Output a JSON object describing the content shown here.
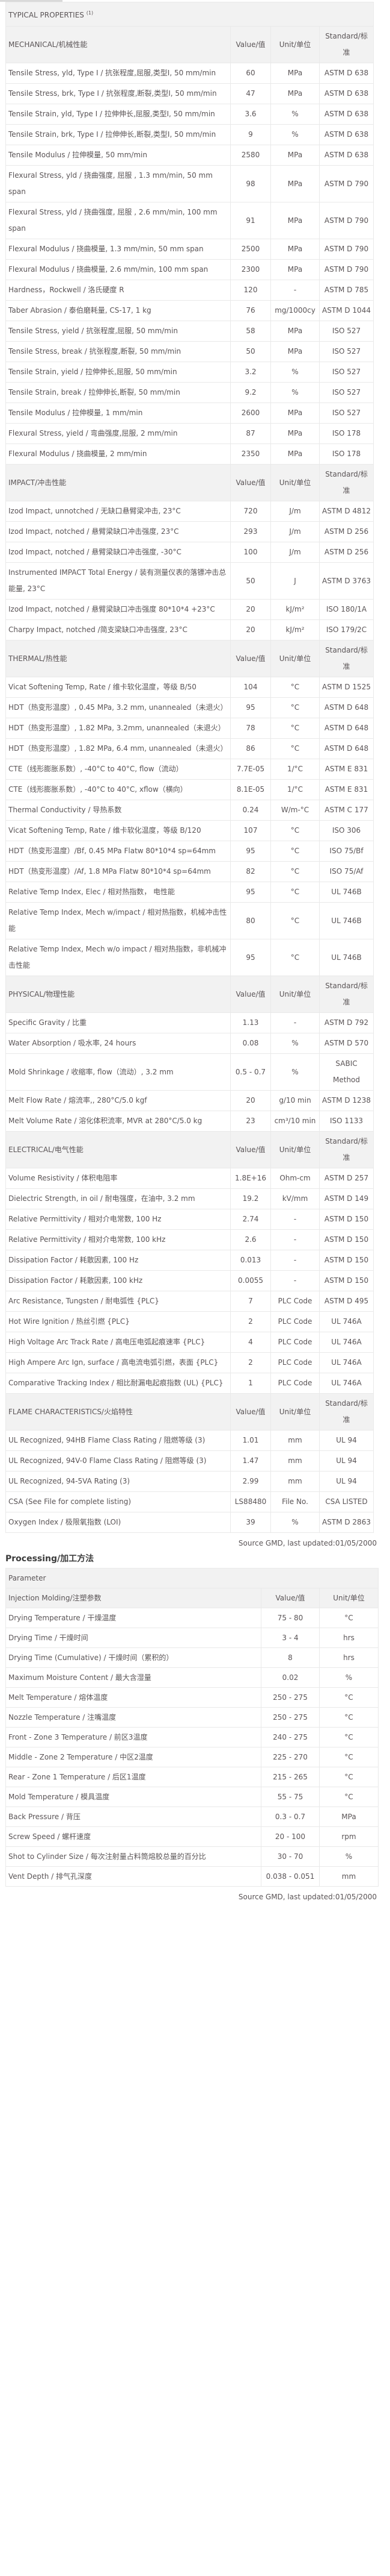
{
  "typical_properties": {
    "title": "TYPICAL PROPERTIES",
    "footnote": "(1)",
    "columns": {
      "value": "Value/值",
      "unit": "Unit/单位",
      "standard": "Standard/标准"
    },
    "sections": [
      {
        "label": "MECHANICAL/机械性能",
        "rows": [
          [
            "Tensile Stress, yld, Type I / 抗张程度,屈服,类型I, 50 mm/min",
            "60",
            "MPa",
            "ASTM D 638"
          ],
          [
            "Tensile Stress, brk, Type I / 抗张程度,断裂,类型I, 50 mm/min",
            "47",
            "MPa",
            "ASTM D 638"
          ],
          [
            "Tensile Strain, yld, Type I / 拉伸伸长,屈服,类型I, 50 mm/min",
            "3.6",
            "%",
            "ASTM D 638"
          ],
          [
            "Tensile Strain, brk, Type I / 拉伸伸长,断裂,类型I, 50 mm/min",
            "9",
            "%",
            "ASTM D 638"
          ],
          [
            "Tensile Modulus / 拉伸模量, 50 mm/min",
            "2580",
            "MPa",
            "ASTM D 638"
          ],
          [
            "Flexural Stress, yld / 挠曲强度, 屈服 , 1.3 mm/min, 50 mm span",
            "98",
            "MPa",
            "ASTM D 790"
          ],
          [
            "Flexural Stress, yld / 挠曲强度, 屈服 , 2.6 mm/min, 100 mm span",
            "91",
            "MPa",
            "ASTM D 790"
          ],
          [
            "Flexural Modulus / 挠曲模量, 1.3 mm/min, 50 mm span",
            "2500",
            "MPa",
            "ASTM D 790"
          ],
          [
            "Flexural Modulus / 挠曲模量, 2.6 mm/min, 100 mm span",
            "2300",
            "MPa",
            "ASTM D 790"
          ],
          [
            "Hardness，Rockwell / 洛氏硬度 R",
            "120",
            "-",
            "ASTM D 785"
          ],
          [
            "Taber Abrasion / 泰伯磨耗量, CS-17, 1 kg",
            "76",
            "mg/1000cy",
            "ASTM D 1044"
          ],
          [
            "Tensile Stress, yield / 抗张程度,屈服, 50 mm/min",
            "58",
            "MPa",
            "ISO 527"
          ],
          [
            "Tensile Stress, break / 抗张程度,断裂, 50 mm/min",
            "50",
            "MPa",
            "ISO 527"
          ],
          [
            "Tensile Strain, yield / 拉伸伸长,屈服, 50 mm/min",
            "3.2",
            "%",
            "ISO 527"
          ],
          [
            "Tensile Strain, break / 拉伸伸长,断裂, 50 mm/min",
            "9.2",
            "%",
            "ISO 527"
          ],
          [
            "Tensile Modulus / 拉伸模量, 1 mm/min",
            "2600",
            "MPa",
            "ISO 527"
          ],
          [
            "Flexural Stress, yield / 弯曲强度,屈服, 2 mm/min",
            "87",
            "MPa",
            "ISO 178"
          ],
          [
            "Flexural Modulus / 挠曲模量, 2 mm/min",
            "2350",
            "MPa",
            "ISO 178"
          ]
        ]
      },
      {
        "label": "IMPACT/冲击性能",
        "rows": [
          [
            "Izod Impact, unnotched / 无缺口悬臂梁冲击, 23°C",
            "720",
            "J/m",
            "ASTM D 4812"
          ],
          [
            "Izod Impact, notched / 悬臂梁缺口冲击强度, 23°C",
            "293",
            "J/m",
            "ASTM D 256"
          ],
          [
            "Izod Impact, notched / 悬臂梁缺口冲击强度, -30°C",
            "100",
            "J/m",
            "ASTM D 256"
          ],
          [
            "Instrumented IMPACT Total Energy / 装有测量仪表的落镖冲击总能量, 23°C",
            "50",
            "J",
            "ASTM D 3763"
          ],
          [
            "Izod Impact, notched / 悬臂梁缺口冲击强度 80*10*4 +23°C",
            "20",
            "kJ/m²",
            "ISO 180/1A"
          ],
          [
            "Charpy Impact, notched /简支梁缺口冲击强度, 23°C",
            "20",
            "kJ/m²",
            "ISO 179/2C"
          ]
        ]
      },
      {
        "label": "THERMAL/热性能",
        "rows": [
          [
            "Vicat Softening Temp, Rate / 维卡软化温度，等级 B/50",
            "104",
            "°C",
            "ASTM D 1525"
          ],
          [
            "HDT（热变形温度）, 0.45 MPa, 3.2 mm, unannealed（未退火）",
            "95",
            "°C",
            "ASTM D 648"
          ],
          [
            "HDT（热变形温度）, 1.82 MPa, 3.2mm, unannealed（未退火）",
            "78",
            "°C",
            "ASTM D 648"
          ],
          [
            "HDT（热变形温度）, 1.82 MPa, 6.4 mm, unannealed（未退火）",
            "86",
            "°C",
            "ASTM D 648"
          ],
          [
            "CTE（线形膨胀系数）, -40°C to 40°C, flow（流动）",
            "7.7E-05",
            "1/°C",
            "ASTM E 831"
          ],
          [
            "CTE（线形膨胀系数）, -40°C to 40°C, xflow（横向）",
            "8.1E-05",
            "1/°C",
            "ASTM E 831"
          ],
          [
            "Thermal Conductivity / 导热系数",
            "0.24",
            "W/m-°C",
            "ASTM C 177"
          ],
          [
            "Vicat Softening Temp, Rate / 维卡软化温度，等级 B/120",
            "107",
            "°C",
            "ISO 306"
          ],
          [
            "HDT（热变形温度）/Bf, 0.45 MPa Flatw 80*10*4 sp=64mm",
            "95",
            "°C",
            "ISO 75/Bf"
          ],
          [
            "HDT（热变形温度）/Af, 1.8 MPa Flatw 80*10*4 sp=64mm",
            "82",
            "°C",
            "ISO 75/Af"
          ],
          [
            "Relative Temp Index, Elec / 相对热指数， 电性能",
            "95",
            "°C",
            "UL 746B"
          ],
          [
            "Relative Temp Index, Mech w/impact / 相对热指数，机械冲击性能",
            "80",
            "°C",
            "UL 746B"
          ],
          [
            "Relative Temp Index, Mech w/o impact / 相对热指数，非机械冲击性能",
            "95",
            "°C",
            "UL 746B"
          ]
        ]
      },
      {
        "label": "PHYSICAL/物理性能",
        "rows": [
          [
            "Specific Gravity / 比重",
            "1.13",
            "-",
            "ASTM D 792"
          ],
          [
            "Water Absorption / 吸水率, 24 hours",
            "0.08",
            "%",
            "ASTM D 570"
          ],
          [
            "Mold Shrinkage / 收缩率, flow（流动）, 3.2 mm",
            "0.5 - 0.7",
            "%",
            "SABIC Method"
          ],
          [
            "Melt Flow Rate / 熔流率,, 280°C/5.0 kgf",
            "20",
            "g/10 min",
            "ASTM D 1238"
          ],
          [
            "Melt Volume Rate / 溶化体积流率, MVR at 280°C/5.0 kg",
            "23",
            "cm³/10 min",
            "ISO 1133"
          ]
        ]
      },
      {
        "label": "ELECTRICAL/电气性能",
        "rows": [
          [
            "Volume Resistivity / 体积电阻率",
            "1.8E+16",
            "Ohm-cm",
            "ASTM D 257"
          ],
          [
            "Dielectric Strength, in oil / 耐电强度，在油中, 3.2 mm",
            "19.2",
            "kV/mm",
            "ASTM D 149"
          ],
          [
            "Relative Permittivity / 相对介电常数, 100 Hz",
            "2.74",
            "-",
            "ASTM D 150"
          ],
          [
            "Relative Permittivity / 相对介电常数, 100 kHz",
            "2.6",
            "-",
            "ASTM D 150"
          ],
          [
            "Dissipation Factor / 耗散因素, 100 Hz",
            "0.013",
            "-",
            "ASTM D 150"
          ],
          [
            "Dissipation Factor / 耗散因素, 100 kHz",
            "0.0055",
            "-",
            "ASTM D 150"
          ],
          [
            "Arc Resistance, Tungsten / 耐电弧性 {PLC}",
            "7",
            "PLC Code",
            "ASTM D 495"
          ],
          [
            "Hot Wire Ignition / 热丝引燃 {PLC}",
            "2",
            "PLC Code",
            "UL 746A"
          ],
          [
            "High Voltage Arc Track Rate / 高电压电弧起痕速率 {PLC}",
            "4",
            "PLC Code",
            "UL 746A"
          ],
          [
            "High Ampere Arc Ign, surface / 高电流电弧引燃，表面 {PLC}",
            "2",
            "PLC Code",
            "UL 746A"
          ],
          [
            "Comparative Tracking Index / 相比耐漏电起痕指数 (UL) {PLC}",
            "1",
            "PLC Code",
            "UL 746A"
          ]
        ]
      },
      {
        "label": "FLAME CHARACTERISTICS/火焰特性",
        "rows": [
          [
            "UL Recognized, 94HB Flame Class Rating / 阻燃等级 (3)",
            "1.01",
            "mm",
            "UL 94"
          ],
          [
            "UL Recognized, 94V-0 Flame Class Rating / 阻燃等级 (3)",
            "1.47",
            "mm",
            "UL 94"
          ],
          [
            "UL Recognized, 94-5VA Rating (3)",
            "2.99",
            "mm",
            "UL 94"
          ],
          [
            "CSA (See File for complete listing)",
            "LS88480",
            "File No.",
            "CSA LISTED"
          ],
          [
            "Oxygen Index / 极限氧指数 (LOI)",
            "39",
            "%",
            "ASTM D 2863"
          ]
        ]
      }
    ],
    "source": "Source GMD, last updated:01/05/2000"
  },
  "processing": {
    "title": "Processing/加工方法",
    "parameter_label": "Parameter",
    "section_label": "Injection Molding/注塑参数",
    "columns": {
      "value": "Value/值",
      "unit": "Unit/单位"
    },
    "rows": [
      [
        "Drying Temperature / 干燥温度",
        "75 - 80",
        "°C"
      ],
      [
        "Drying Time / 干燥时间",
        "3 - 4",
        "hrs"
      ],
      [
        "Drying Time (Cumulative) / 干燥时间（累积的）",
        "8",
        "hrs"
      ],
      [
        "Maximum Moisture Content / 最大含湿量",
        "0.02",
        "%"
      ],
      [
        "Melt Temperature / 熔体温度",
        "250 - 275",
        "°C"
      ],
      [
        "Nozzle Temperature / 注嘴温度",
        "250 - 275",
        "°C"
      ],
      [
        "Front - Zone 3 Temperature / 前区3温度",
        "240 - 275",
        "°C"
      ],
      [
        "Middle - Zone 2 Temperature / 中区2温度",
        "225 - 270",
        "°C"
      ],
      [
        "Rear - Zone 1 Temperature / 后区1温度",
        "215 - 265",
        "°C"
      ],
      [
        "Mold Temperature / 模具温度",
        "55 - 75",
        "°C"
      ],
      [
        "Back Pressure / 背压",
        "0.3 - 0.7",
        "MPa"
      ],
      [
        "Screw Speed / 螺杆速度",
        "20 - 100",
        "rpm"
      ],
      [
        "Shot to Cylinder Size / 每次注射量占料筒熔胶总量的百分比",
        "30 - 70",
        "%"
      ],
      [
        "Vent Depth / 排气孔深度",
        "0.038 - 0.051",
        "mm"
      ]
    ],
    "source": "Source GMD, last updated:01/05/2000"
  }
}
